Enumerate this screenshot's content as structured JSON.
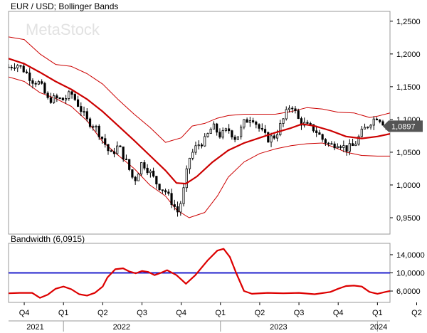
{
  "chart_data": [
    {
      "type": "candlestick",
      "title": "EUR / USD; Bollinger Bands",
      "watermark": "MetaStock",
      "yticks": [
        "1,2500",
        "1,2000",
        "1,1500",
        "1,1000",
        "1,0500",
        "1,0000",
        "0,9500"
      ],
      "ylim": [
        0.925,
        1.265
      ],
      "last_price_label": "1,0897",
      "last_price": 1.0897,
      "x_start": 2021.65,
      "x_end": 2024.08,
      "colors": {
        "candles": "#000000",
        "middle_band": "#cc0000",
        "outer_bands": "#cc0000",
        "price_badge": "#555555"
      },
      "middle_band": {
        "x": [
          2021.65,
          2021.75,
          2021.85,
          2021.95,
          2022.05,
          2022.15,
          2022.25,
          2022.35,
          2022.45,
          2022.55,
          2022.65,
          2022.72,
          2022.78,
          2022.85,
          2022.95,
          2023.05,
          2023.15,
          2023.25,
          2023.35,
          2023.45,
          2023.52,
          2023.6,
          2023.7,
          2023.8,
          2023.9,
          2024.0,
          2024.08
        ],
        "values": [
          1.193,
          1.185,
          1.172,
          1.158,
          1.146,
          1.131,
          1.112,
          1.09,
          1.068,
          1.045,
          1.022,
          1.003,
          1.002,
          1.013,
          1.035,
          1.053,
          1.064,
          1.072,
          1.08,
          1.087,
          1.093,
          1.09,
          1.083,
          1.074,
          1.071,
          1.074,
          1.078
        ]
      },
      "upper_band": {
        "x": [
          2021.65,
          2021.75,
          2021.85,
          2021.95,
          2022.05,
          2022.15,
          2022.25,
          2022.35,
          2022.45,
          2022.55,
          2022.65,
          2022.75,
          2022.82,
          2022.9,
          2022.98,
          2023.05,
          2023.15,
          2023.25,
          2023.35,
          2023.45,
          2023.55,
          2023.65,
          2023.75,
          2023.85,
          2023.95,
          2024.0,
          2024.08
        ],
        "values": [
          1.226,
          1.222,
          1.2,
          1.184,
          1.181,
          1.17,
          1.154,
          1.13,
          1.108,
          1.088,
          1.065,
          1.072,
          1.09,
          1.094,
          1.102,
          1.106,
          1.108,
          1.108,
          1.108,
          1.112,
          1.118,
          1.116,
          1.111,
          1.11,
          1.103,
          1.105,
          1.11
        ]
      },
      "lower_band": {
        "x": [
          2021.65,
          2021.75,
          2021.85,
          2021.95,
          2022.05,
          2022.15,
          2022.25,
          2022.35,
          2022.45,
          2022.55,
          2022.65,
          2022.72,
          2022.8,
          2022.9,
          2022.98,
          2023.05,
          2023.15,
          2023.25,
          2023.35,
          2023.45,
          2023.55,
          2023.65,
          2023.72,
          2023.8,
          2023.9,
          2024.0,
          2024.08
        ],
        "values": [
          1.165,
          1.158,
          1.141,
          1.132,
          1.12,
          1.098,
          1.066,
          1.045,
          1.025,
          1.0,
          0.983,
          0.962,
          0.95,
          0.958,
          0.983,
          1.012,
          1.035,
          1.048,
          1.055,
          1.06,
          1.063,
          1.064,
          1.058,
          1.05,
          1.045,
          1.044,
          1.044
        ]
      },
      "price_path": {
        "x": [
          2021.65,
          2021.7,
          2021.75,
          2021.8,
          2021.85,
          2021.9,
          2021.95,
          2022.0,
          2022.05,
          2022.1,
          2022.15,
          2022.2,
          2022.25,
          2022.3,
          2022.35,
          2022.4,
          2022.45,
          2022.5,
          2022.55,
          2022.6,
          2022.65,
          2022.7,
          2022.73,
          2022.76,
          2022.8,
          2022.85,
          2022.9,
          2022.95,
          2023.0,
          2023.05,
          2023.1,
          2023.15,
          2023.2,
          2023.25,
          2023.3,
          2023.35,
          2023.4,
          2023.45,
          2023.5,
          2023.55,
          2023.6,
          2023.65,
          2023.7,
          2023.75,
          2023.8,
          2023.85,
          2023.9,
          2023.95,
          2024.0,
          2024.05,
          2024.08
        ],
        "values": [
          1.18,
          1.185,
          1.175,
          1.16,
          1.155,
          1.13,
          1.132,
          1.13,
          1.14,
          1.12,
          1.098,
          1.09,
          1.07,
          1.045,
          1.06,
          1.035,
          1.005,
          1.035,
          1.02,
          1.0,
          0.99,
          0.97,
          0.958,
          0.985,
          1.04,
          1.06,
          1.068,
          1.09,
          1.075,
          1.085,
          1.07,
          1.095,
          1.105,
          1.085,
          1.07,
          1.075,
          1.1,
          1.125,
          1.098,
          1.09,
          1.085,
          1.07,
          1.06,
          1.065,
          1.055,
          1.06,
          1.08,
          1.095,
          1.105,
          1.092,
          1.09
        ]
      }
    },
    {
      "type": "line",
      "title": "Bandwidth (6,0915)",
      "yticks": [
        "14,0000",
        "10,0000",
        "6,0000"
      ],
      "ylim": [
        3.5,
        16.5
      ],
      "threshold": 10.0,
      "colors": {
        "bandwidth": "#dd0000",
        "threshold": "#2222cc"
      },
      "x_tick_labels": [
        "Q4",
        "Q1",
        "Q2",
        "Q3",
        "Q4",
        "Q1",
        "Q2",
        "Q3",
        "Q4",
        "Q1",
        "Q2"
      ],
      "x_tick_positions": [
        2021.75,
        2022.0,
        2022.25,
        2022.5,
        2022.75,
        2023.0,
        2023.25,
        2023.5,
        2023.75,
        2024.0,
        2024.25
      ],
      "year_labels": [
        "2021",
        "2022",
        "2023",
        "2024"
      ],
      "year_positions": [
        2021.82,
        2022.37,
        2023.37,
        2024.05
      ],
      "bandwidth": {
        "x": [
          2021.65,
          2021.72,
          2021.8,
          2021.85,
          2021.9,
          2021.95,
          2022.0,
          2022.05,
          2022.1,
          2022.15,
          2022.2,
          2022.25,
          2022.28,
          2022.33,
          2022.38,
          2022.42,
          2022.46,
          2022.5,
          2022.54,
          2022.58,
          2022.62,
          2022.66,
          2022.72,
          2022.78,
          2022.84,
          2022.92,
          2022.98,
          2023.02,
          2023.06,
          2023.1,
          2023.15,
          2023.2,
          2023.3,
          2023.4,
          2023.5,
          2023.6,
          2023.7,
          2023.75,
          2023.8,
          2023.85,
          2023.9,
          2023.95,
          2024.0,
          2024.05,
          2024.08
        ],
        "values": [
          5.5,
          5.6,
          5.6,
          4.5,
          5.2,
          6.5,
          7.0,
          6.4,
          5.3,
          5.0,
          5.6,
          7.0,
          9.0,
          10.8,
          11.0,
          10.3,
          9.9,
          10.4,
          10.2,
          9.5,
          10.0,
          10.6,
          9.5,
          7.6,
          9.5,
          12.8,
          14.9,
          15.3,
          13.5,
          10.0,
          6.0,
          5.4,
          5.6,
          5.5,
          5.6,
          5.3,
          5.8,
          6.5,
          7.1,
          7.2,
          7.0,
          5.8,
          5.4,
          5.8,
          6.0
        ]
      }
    }
  ]
}
